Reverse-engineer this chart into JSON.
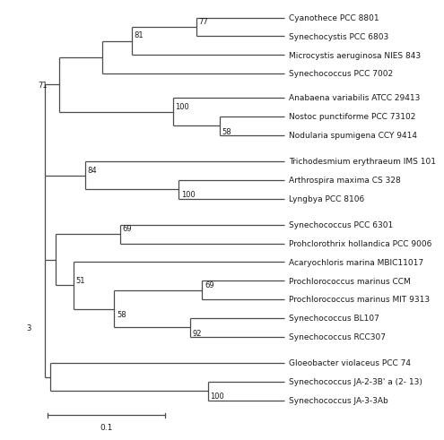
{
  "scale_bar_label": "0.1",
  "line_color": "#4a4a4a",
  "text_color": "#1a1a1a",
  "bg_color": "#ffffff",
  "font_size": 6.5,
  "bootstrap_font_size": 6.0,
  "taxa": [
    "Cyanothece PCC 8801",
    "Synechocystis PCC 6803",
    "Microcystis aeruginosa NIES 843",
    "Synechococcus PCC 7002",
    "Anabaena variabilis ATCC 29413",
    "Nostoc punctiforme PCC 73102",
    "Nodularia spumigena CCY 9414",
    "Trichodesmium erythraeum IMS 101",
    "Arthrospira maxima CS 328",
    "Lyngbya PCC 8106",
    "Synechococcus PCC 6301",
    "Prohclorothrix hollandica PCC 9006",
    "Acaryochloris marina MBIC11017",
    "Prochlorococcus marinus CCM",
    "Prochlorococcus marinus MIT 9313",
    "Synechococcus BL107",
    "Synechococcus RCC307",
    "Gloeobacter violaceus PCC 74",
    "Synechococcus JA-2-3B' a (2- 13)",
    "Synechococcus JA-3-3Ab"
  ],
  "ylim": [
    21.8,
    -0.5
  ],
  "xlim": [
    -0.025,
    0.32
  ]
}
